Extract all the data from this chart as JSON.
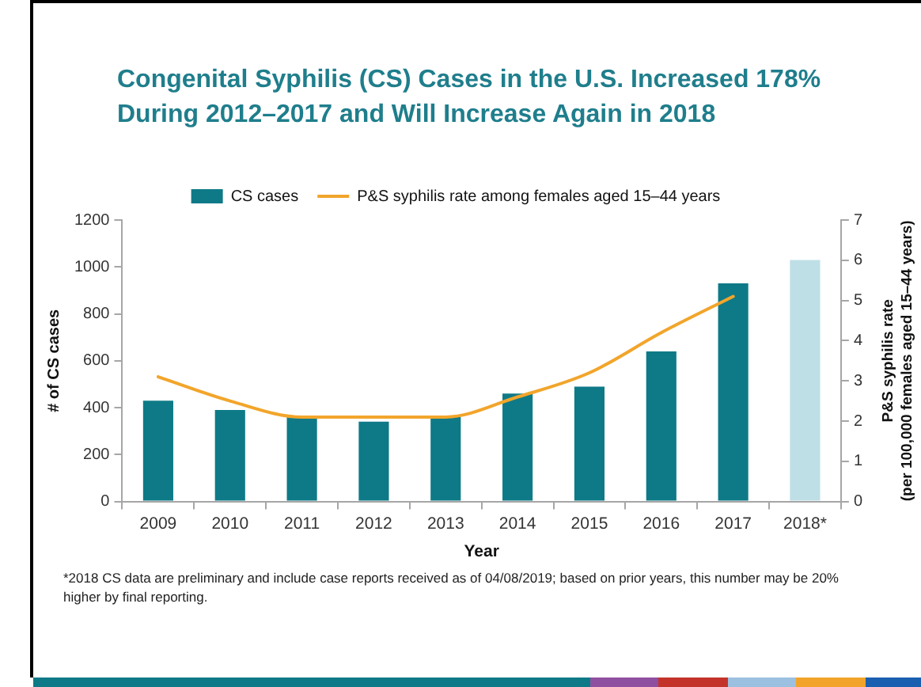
{
  "chart_data": {
    "type": "bar",
    "title": "Congenital Syphilis (CS) Cases in the U.S. Increased 178% During 2012–2017 and Will Increase Again in 2018",
    "xlabel": "Year",
    "ylabel": "# of CS cases",
    "y2label": "P&S syphilis rate\n(per 100,000 females aged 15–44 years)",
    "categories": [
      "2009",
      "2010",
      "2011",
      "2012",
      "2013",
      "2014",
      "2015",
      "2016",
      "2017",
      "2018*"
    ],
    "series": [
      {
        "name": "CS cases",
        "colors": [
          "#0e7a87",
          "#0e7a87",
          "#0e7a87",
          "#0e7a87",
          "#0e7a87",
          "#0e7a87",
          "#0e7a87",
          "#0e7a87",
          "#0e7a87",
          "#bfdfe7"
        ],
        "values": [
          430,
          390,
          360,
          340,
          360,
          460,
          490,
          640,
          930,
          1030
        ]
      },
      {
        "name": "P&S syphilis rate among females aged 15–44 years",
        "type": "line",
        "axis": "y2",
        "color": "#f2a52b",
        "values": [
          3.1,
          2.5,
          2.1,
          2.1,
          2.1,
          2.6,
          3.2,
          4.2,
          5.1,
          null
        ]
      }
    ],
    "ylim": [
      0,
      1200
    ],
    "yticks": [
      0,
      200,
      400,
      600,
      800,
      1000,
      1200
    ],
    "y2lim": [
      0,
      7
    ],
    "y2ticks": [
      0,
      1,
      2,
      3,
      4,
      5,
      6,
      7
    ],
    "legend": "top",
    "annotations": [
      "*2018 CS data are preliminary and include case reports received as of 04/08/2019; based on prior years, this number may be 20% higher by final reporting."
    ]
  }
}
